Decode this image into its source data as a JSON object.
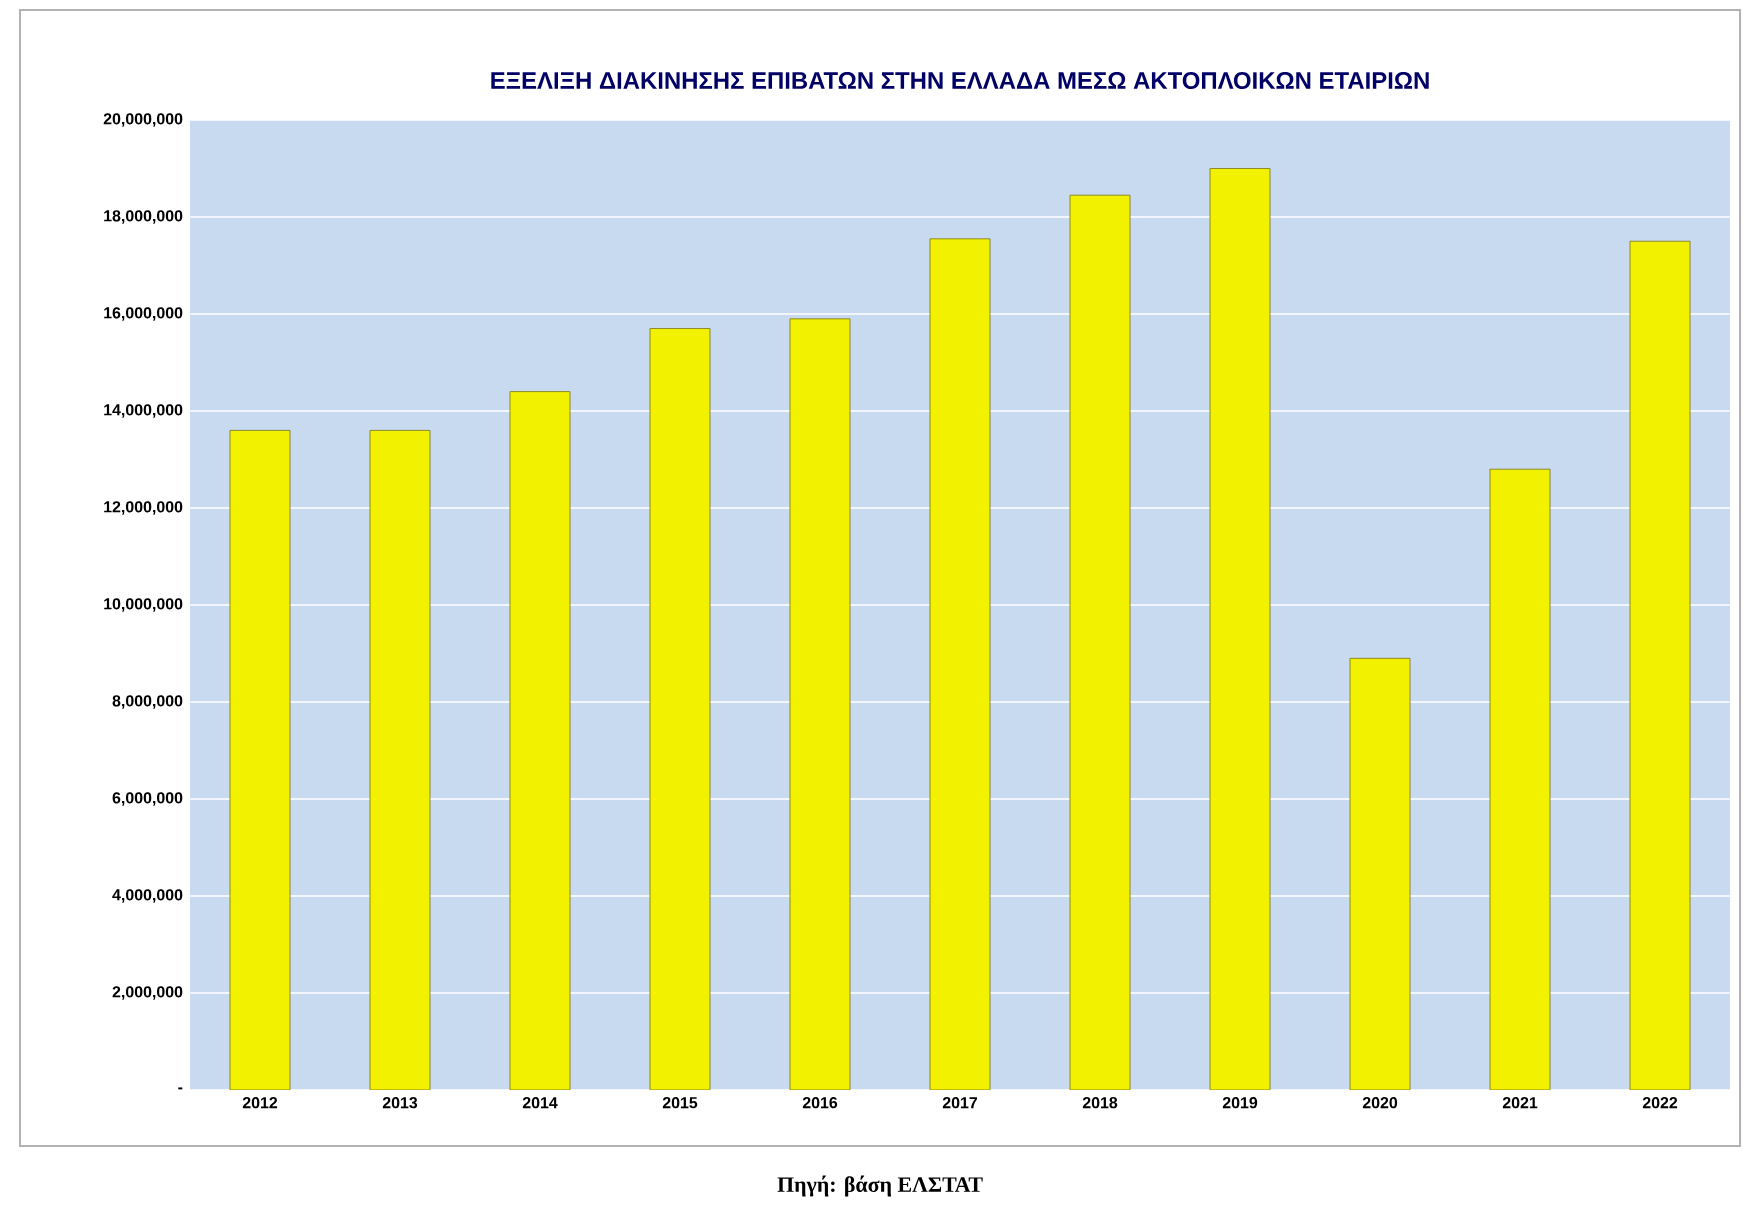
{
  "chart_data": {
    "type": "bar",
    "title": "ΕΞΕΛΙΞΗ ΔΙΑΚΙΝΗΣΗΣ ΕΠΙΒΑΤΩΝ ΣΤΗΝ ΕΛΛΑΔΑ ΜΕΣΩ ΑΚΤΟΠΛΟΙΚΩΝ ΕΤΑΙΡΙΩΝ",
    "categories": [
      "2012",
      "2013",
      "2014",
      "2015",
      "2016",
      "2017",
      "2018",
      "2019",
      "2020",
      "2021",
      "2022"
    ],
    "values": [
      13600000,
      13600000,
      14400000,
      15700000,
      15900000,
      17550000,
      18450000,
      19000000,
      8900000,
      12800000,
      17500000
    ],
    "color": "#f2f200",
    "ylim": [
      0,
      20000000
    ],
    "yticks": [
      {
        "value": 0,
        "label": "-"
      },
      {
        "value": 2000000,
        "label": "2,000,000"
      },
      {
        "value": 4000000,
        "label": "4,000,000"
      },
      {
        "value": 6000000,
        "label": "6,000,000"
      },
      {
        "value": 8000000,
        "label": "8,000,000"
      },
      {
        "value": 10000000,
        "label": "10,000,000"
      },
      {
        "value": 12000000,
        "label": "12,000,000"
      },
      {
        "value": 14000000,
        "label": "14,000,000"
      },
      {
        "value": 16000000,
        "label": "16,000,000"
      },
      {
        "value": 18000000,
        "label": "18,000,000"
      },
      {
        "value": 20000000,
        "label": "20,000,000"
      }
    ],
    "grid": "y",
    "annotations": [
      "Πηγή: βάση ΕΛΣΤΑΤ"
    ]
  }
}
